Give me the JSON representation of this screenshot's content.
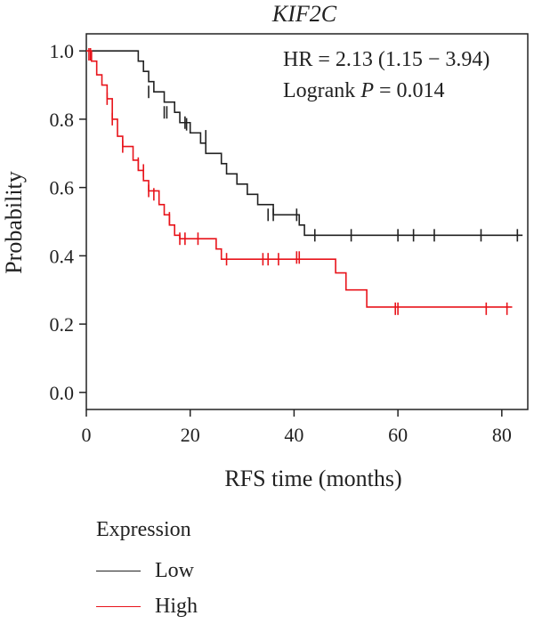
{
  "chart_data": {
    "type": "line",
    "title": "KIF2C",
    "xlabel": "RFS time (months)",
    "ylabel": "Probability",
    "xlim": [
      0,
      85
    ],
    "ylim": [
      -0.05,
      1.05
    ],
    "x_ticks": [
      0,
      20,
      40,
      60,
      80
    ],
    "y_ticks": [
      0.0,
      0.2,
      0.4,
      0.6,
      0.8,
      1.0
    ],
    "annotations": {
      "hr": "HR = 2.13 (1.15 − 3.94)",
      "logrank_prefix": "Logrank ",
      "logrank_p": "P",
      "logrank_value": " = 0.014"
    },
    "legend_title": "Expression",
    "series": [
      {
        "name": "Low",
        "color": "#222222",
        "steps": [
          [
            0,
            1.0
          ],
          [
            10,
            0.97
          ],
          [
            11,
            0.94
          ],
          [
            12,
            0.91
          ],
          [
            13,
            0.88
          ],
          [
            15,
            0.85
          ],
          [
            17,
            0.82
          ],
          [
            18,
            0.79
          ],
          [
            20,
            0.76
          ],
          [
            22,
            0.73
          ],
          [
            23,
            0.7
          ],
          [
            26,
            0.67
          ],
          [
            27,
            0.64
          ],
          [
            29,
            0.61
          ],
          [
            31,
            0.58
          ],
          [
            33,
            0.55
          ],
          [
            36,
            0.52
          ],
          [
            41,
            0.49
          ],
          [
            42,
            0.46
          ],
          [
            84,
            0.46
          ]
        ],
        "censored": [
          [
            12,
            0.88
          ],
          [
            15,
            0.82
          ],
          [
            15.5,
            0.82
          ],
          [
            19,
            0.79
          ],
          [
            19.3,
            0.785
          ],
          [
            23,
            0.75
          ],
          [
            35,
            0.52
          ],
          [
            36,
            0.52
          ],
          [
            40.5,
            0.52
          ],
          [
            44,
            0.46
          ],
          [
            51,
            0.46
          ],
          [
            60,
            0.46
          ],
          [
            63,
            0.46
          ],
          [
            67,
            0.46
          ],
          [
            76,
            0.46
          ],
          [
            83,
            0.46
          ]
        ]
      },
      {
        "name": "High",
        "color": "#e8141b",
        "steps": [
          [
            0,
            1.0
          ],
          [
            1,
            0.97
          ],
          [
            2,
            0.93
          ],
          [
            3,
            0.9
          ],
          [
            4,
            0.86
          ],
          [
            5,
            0.8
          ],
          [
            6,
            0.75
          ],
          [
            7,
            0.72
          ],
          [
            9,
            0.68
          ],
          [
            10,
            0.65
          ],
          [
            11,
            0.62
          ],
          [
            12,
            0.59
          ],
          [
            14,
            0.55
          ],
          [
            15,
            0.52
          ],
          [
            16,
            0.49
          ],
          [
            17,
            0.46
          ],
          [
            18,
            0.45
          ],
          [
            25,
            0.42
          ],
          [
            26,
            0.39
          ],
          [
            48,
            0.35
          ],
          [
            50,
            0.3
          ],
          [
            54,
            0.25
          ],
          [
            82,
            0.25
          ]
        ],
        "censored": [
          [
            0.5,
            0.99
          ],
          [
            0.8,
            0.99
          ],
          [
            4,
            0.86
          ],
          [
            5,
            0.8
          ],
          [
            7,
            0.72
          ],
          [
            10,
            0.67
          ],
          [
            11,
            0.65
          ],
          [
            12,
            0.59
          ],
          [
            13,
            0.58
          ],
          [
            16,
            0.51
          ],
          [
            18,
            0.45
          ],
          [
            19,
            0.45
          ],
          [
            21.5,
            0.45
          ],
          [
            27,
            0.39
          ],
          [
            34,
            0.39
          ],
          [
            35,
            0.39
          ],
          [
            37,
            0.39
          ],
          [
            40.5,
            0.395
          ],
          [
            41,
            0.395
          ],
          [
            59.5,
            0.245
          ],
          [
            60,
            0.245
          ],
          [
            77,
            0.245
          ],
          [
            81,
            0.245
          ]
        ]
      }
    ]
  }
}
